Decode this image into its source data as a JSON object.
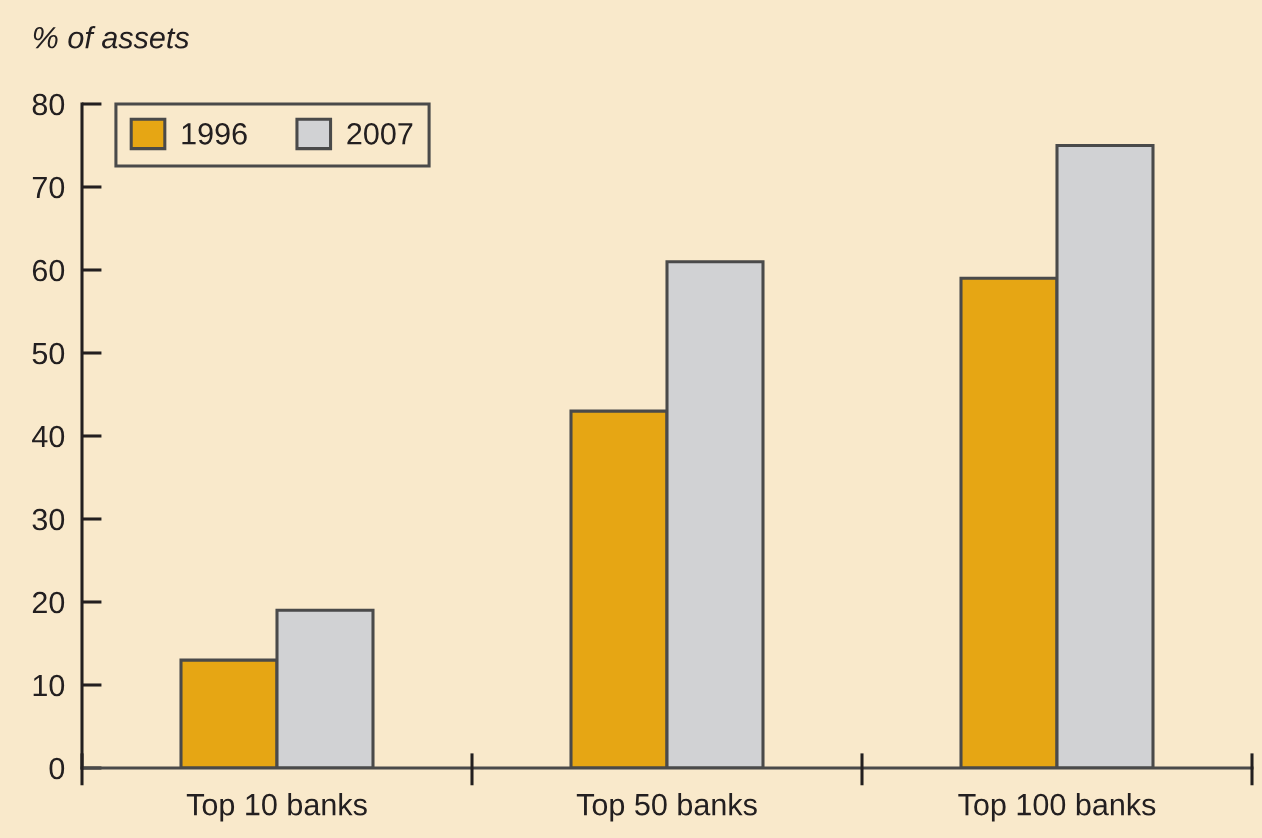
{
  "chart_data": {
    "type": "bar",
    "ylabel": "% of assets",
    "categories": [
      "Top 10 banks",
      "Top 50 banks",
      "Top 100 banks"
    ],
    "series": [
      {
        "name": "1996",
        "color": "#e6a614",
        "values": [
          13,
          43,
          59
        ]
      },
      {
        "name": "2007",
        "color": "#d1d2d4",
        "values": [
          19,
          61,
          75
        ]
      }
    ],
    "ylim": [
      0,
      80
    ],
    "yticks": [
      0,
      10,
      20,
      30,
      40,
      50,
      60,
      70,
      80
    ],
    "legend": "top left"
  }
}
